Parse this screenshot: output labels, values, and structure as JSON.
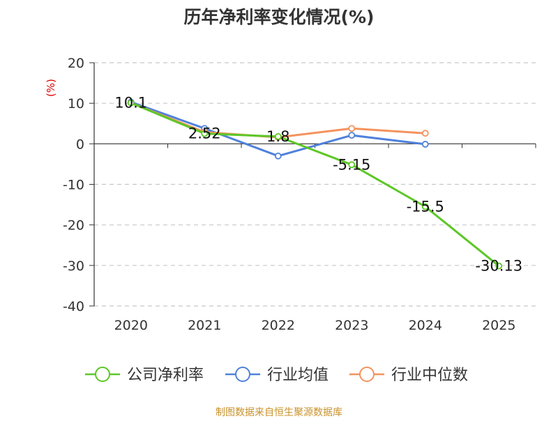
{
  "chart_data": {
    "type": "line",
    "title": "历年净利率变化情况(%)",
    "ylabel": "(%)",
    "xlabel": "",
    "categories": [
      "2020",
      "2021",
      "2022",
      "2023",
      "2024",
      "2025"
    ],
    "ylim": [
      -40,
      20
    ],
    "yticks": [
      20,
      10,
      0,
      -10,
      -20,
      -30,
      -40
    ],
    "grid": true,
    "legend_position": "bottom",
    "series": [
      {
        "name": "公司净利率",
        "color": "#5cc726",
        "values": [
          10.1,
          2.52,
          1.8,
          -5.15,
          -15.5,
          -30.13
        ],
        "labels": [
          "10.1",
          "2.52",
          "1.8",
          "-5.15",
          "-15.5",
          "-30.13"
        ]
      },
      {
        "name": "行业均值",
        "color": "#4f81db",
        "values": [
          10.3,
          3.8,
          -3.0,
          2.1,
          -0.1,
          null
        ]
      },
      {
        "name": "行业中位数",
        "color": "#f4935e",
        "values": [
          10.1,
          2.9,
          1.6,
          3.8,
          2.6,
          null
        ]
      }
    ],
    "source": "制图数据来自恒生聚源数据库"
  },
  "colors": {
    "axis": "#333333",
    "grid": "#c8c8c8",
    "ylabel": "#e00000",
    "source": "#c8922a"
  }
}
